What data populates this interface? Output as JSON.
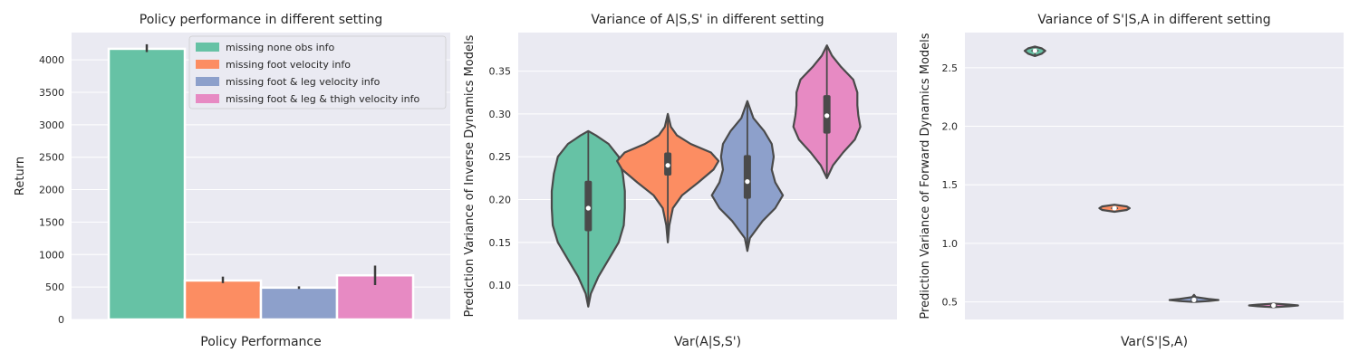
{
  "chart_data": [
    {
      "type": "bar",
      "title": "Policy performance in different setting",
      "xlabel": "Policy Performance",
      "ylabel": "Return",
      "ylim": [
        0,
        4420
      ],
      "yticks": [
        0,
        500,
        1000,
        1500,
        2000,
        2500,
        3000,
        3500,
        4000
      ],
      "legend_position": "top-right",
      "series": [
        {
          "name": "missing none obs info",
          "color": "#66c2a5",
          "value": 4170,
          "err": [
            4120,
            4240
          ]
        },
        {
          "name": "missing foot velocity info",
          "color": "#fc8d62",
          "value": 600,
          "err": [
            560,
            660
          ]
        },
        {
          "name": "missing foot & leg velocity info",
          "color": "#8da0cb",
          "value": 490,
          "err": [
            470,
            510
          ]
        },
        {
          "name": "missing foot & leg & thigh velocity info",
          "color": "#e78ac3",
          "value": 680,
          "err": [
            530,
            830
          ]
        }
      ]
    },
    {
      "type": "violin",
      "title": "Variance of A|S,S' in different setting",
      "xlabel": "Var(A|S,S')",
      "ylabel": "Prediction Variance of Inverse Dynamics Models",
      "ylim": [
        0.06,
        0.395
      ],
      "yticks": [
        0.1,
        0.15,
        0.2,
        0.25,
        0.3,
        0.35
      ],
      "series": [
        {
          "color": "#66c2a5",
          "min": 0.075,
          "q1": 0.163,
          "median": 0.19,
          "q3": 0.222,
          "max": 0.28,
          "profile": [
            [
              0.075,
              0.0
            ],
            [
              0.09,
              0.05
            ],
            [
              0.11,
              0.2
            ],
            [
              0.13,
              0.4
            ],
            [
              0.15,
              0.6
            ],
            [
              0.17,
              0.7
            ],
            [
              0.19,
              0.72
            ],
            [
              0.21,
              0.72
            ],
            [
              0.23,
              0.68
            ],
            [
              0.25,
              0.6
            ],
            [
              0.265,
              0.4
            ],
            [
              0.275,
              0.15
            ],
            [
              0.28,
              0.0
            ]
          ]
        },
        {
          "color": "#fc8d62",
          "min": 0.15,
          "q1": 0.228,
          "median": 0.24,
          "q3": 0.255,
          "max": 0.3,
          "profile": [
            [
              0.15,
              0.0
            ],
            [
              0.17,
              0.03
            ],
            [
              0.19,
              0.1
            ],
            [
              0.205,
              0.28
            ],
            [
              0.22,
              0.6
            ],
            [
              0.235,
              0.9
            ],
            [
              0.245,
              1.0
            ],
            [
              0.255,
              0.85
            ],
            [
              0.265,
              0.45
            ],
            [
              0.275,
              0.18
            ],
            [
              0.285,
              0.06
            ],
            [
              0.3,
              0.0
            ]
          ]
        },
        {
          "color": "#8da0cb",
          "min": 0.14,
          "q1": 0.201,
          "median": 0.221,
          "q3": 0.252,
          "max": 0.315,
          "profile": [
            [
              0.14,
              0.0
            ],
            [
              0.155,
              0.05
            ],
            [
              0.175,
              0.3
            ],
            [
              0.19,
              0.55
            ],
            [
              0.205,
              0.7
            ],
            [
              0.22,
              0.55
            ],
            [
              0.235,
              0.48
            ],
            [
              0.25,
              0.52
            ],
            [
              0.265,
              0.48
            ],
            [
              0.28,
              0.33
            ],
            [
              0.295,
              0.12
            ],
            [
              0.315,
              0.0
            ]
          ]
        },
        {
          "color": "#e78ac3",
          "min": 0.225,
          "q1": 0.277,
          "median": 0.298,
          "q3": 0.322,
          "max": 0.38,
          "profile": [
            [
              0.225,
              0.0
            ],
            [
              0.24,
              0.12
            ],
            [
              0.255,
              0.32
            ],
            [
              0.27,
              0.55
            ],
            [
              0.285,
              0.66
            ],
            [
              0.298,
              0.62
            ],
            [
              0.31,
              0.6
            ],
            [
              0.325,
              0.6
            ],
            [
              0.34,
              0.52
            ],
            [
              0.355,
              0.28
            ],
            [
              0.368,
              0.1
            ],
            [
              0.38,
              0.0
            ]
          ]
        }
      ]
    },
    {
      "type": "violin",
      "title": "Variance of S'|S,A in different setting",
      "xlabel": "Var(S'|S,A)",
      "ylabel": "Prediction Variance of Forward Dynamics Models",
      "ylim": [
        0.35,
        2.8
      ],
      "yticks": [
        0.5,
        1.0,
        1.5,
        2.0,
        2.5
      ],
      "series": [
        {
          "color": "#66c2a5",
          "min": 2.6,
          "q1": 2.635,
          "median": 2.645,
          "q3": 2.655,
          "max": 2.68,
          "profile": [
            [
              2.6,
              0.0
            ],
            [
              2.62,
              0.28
            ],
            [
              2.645,
              0.42
            ],
            [
              2.665,
              0.28
            ],
            [
              2.68,
              0.0
            ]
          ]
        },
        {
          "color": "#fc8d62",
          "min": 1.27,
          "q1": 1.292,
          "median": 1.3,
          "q3": 1.308,
          "max": 1.33,
          "profile": [
            [
              1.27,
              0.0
            ],
            [
              1.285,
              0.5
            ],
            [
              1.3,
              0.62
            ],
            [
              1.315,
              0.5
            ],
            [
              1.33,
              0.0
            ]
          ]
        },
        {
          "color": "#8da0cb",
          "min": 0.5,
          "q1": 0.512,
          "median": 0.517,
          "q3": 0.525,
          "max": 0.56,
          "profile": [
            [
              0.5,
              0.0
            ],
            [
              0.508,
              0.6
            ],
            [
              0.516,
              1.0
            ],
            [
              0.525,
              0.6
            ],
            [
              0.54,
              0.08
            ],
            [
              0.56,
              0.0
            ]
          ]
        },
        {
          "color": "#e78ac3",
          "min": 0.455,
          "q1": 0.465,
          "median": 0.47,
          "q3": 0.476,
          "max": 0.485,
          "profile": [
            [
              0.455,
              0.0
            ],
            [
              0.463,
              0.65
            ],
            [
              0.47,
              1.0
            ],
            [
              0.477,
              0.65
            ],
            [
              0.485,
              0.0
            ]
          ]
        }
      ]
    }
  ]
}
